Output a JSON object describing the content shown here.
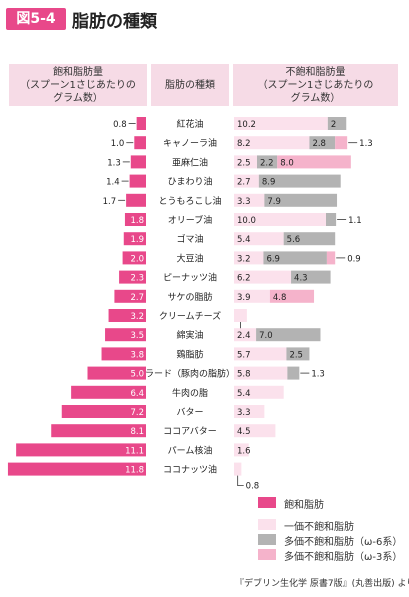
{
  "figure": {
    "badge": "図5-4",
    "title": "脂肪の種類"
  },
  "headers": {
    "saturated": "飽和脂肪量\n（スプーン1さじあたりの\nグラム数）",
    "fat_type": "脂肪の種類",
    "unsaturated": "不飽和脂肪量\n（スプーン1さじあたりの\nグラム数）"
  },
  "legend": [
    {
      "label": "飽和脂肪",
      "color": "#e8488a"
    },
    {
      "label": "一価不飽和脂肪",
      "color": "#fbe1ec"
    },
    {
      "label": "多価不飽和脂肪（ω-6系）",
      "color": "#b3b3b3"
    },
    {
      "label": "多価不飽和脂肪（ω-3系）",
      "color": "#f5b3cb"
    }
  ],
  "source": "『デブリン生化学 原書7版』(丸善出版) より",
  "chart_data": {
    "type": "bar",
    "orientation": "horizontal",
    "categories": [
      "紅花油",
      "キャノーラ油",
      "亜麻仁油",
      "ひまわり油",
      "とうもろこし油",
      "オリーブ油",
      "ゴマ油",
      "大豆油",
      "ピーナッツ油",
      "サケの脂肪",
      "クリームチーズ",
      "綿実油",
      "鶏脂肪",
      "ラード（豚肉の脂肪）",
      "牛肉の脂",
      "バター",
      "ココアバター",
      "パーム核油",
      "ココナッツ油"
    ],
    "series": [
      {
        "name": "飽和脂肪",
        "values": [
          0.8,
          1.0,
          1.3,
          1.4,
          1.7,
          1.8,
          1.9,
          2.0,
          2.3,
          2.7,
          3.2,
          3.5,
          3.8,
          5.0,
          6.4,
          7.2,
          8.1,
          11.1,
          11.8
        ]
      },
      {
        "name": "一価不飽和脂肪",
        "values": [
          10.2,
          8.2,
          2.5,
          2.7,
          3.3,
          10.0,
          5.4,
          3.2,
          6.2,
          3.9,
          1.4,
          2.4,
          5.7,
          5.8,
          5.4,
          3.3,
          4.5,
          1.6,
          0.8
        ]
      },
      {
        "name": "多価不飽和脂肪（ω-6系）",
        "values": [
          2,
          2.8,
          2.2,
          8.9,
          7.9,
          1.1,
          5.6,
          6.9,
          4.3,
          null,
          null,
          7.0,
          2.5,
          1.3,
          null,
          null,
          null,
          null,
          null
        ]
      },
      {
        "name": "多価不飽和脂肪（ω-3系）",
        "values": [
          null,
          1.3,
          8.0,
          null,
          null,
          null,
          null,
          0.9,
          null,
          4.8,
          null,
          null,
          null,
          null,
          null,
          null,
          null,
          null,
          null
        ]
      }
    ]
  }
}
